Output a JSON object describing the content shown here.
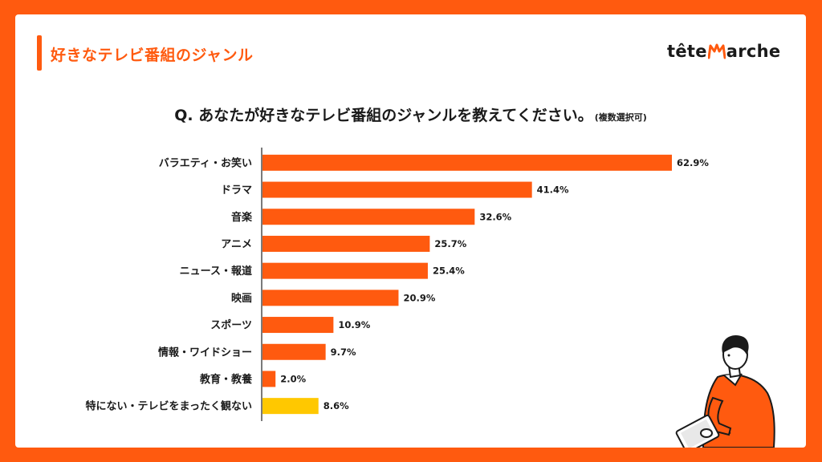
{
  "header": {
    "title": "好きなテレビ番組のジャンル",
    "logo_left": "tête",
    "logo_right": "arche"
  },
  "question": {
    "text": "Q. あなたが好きなテレビ番組のジャンルを教えてください。",
    "note": "(複数選択可)"
  },
  "colors": {
    "brand": "#FF5A0F",
    "highlight": "#FFC800",
    "text": "#1a1a1a"
  },
  "chart_data": {
    "type": "bar",
    "orientation": "horizontal",
    "title": "Q. あなたが好きなテレビ番組のジャンルを教えてください。",
    "xlim": [
      0,
      100
    ],
    "categories": [
      "バラエティ・お笑い",
      "ドラマ",
      "音楽",
      "アニメ",
      "ニュース・報道",
      "映画",
      "スポーツ",
      "情報・ワイドショー",
      "教育・教養",
      "特にない・テレビをまったく観ない"
    ],
    "values": [
      62.9,
      41.4,
      32.6,
      25.7,
      25.4,
      20.9,
      10.9,
      9.7,
      2.0,
      8.6
    ],
    "value_labels": [
      "62.9%",
      "41.4%",
      "32.6%",
      "25.7%",
      "25.4%",
      "20.9%",
      "10.9%",
      "9.7%",
      "2.0%",
      "8.6%"
    ],
    "bar_colors": [
      "#FF5A0F",
      "#FF5A0F",
      "#FF5A0F",
      "#FF5A0F",
      "#FF5A0F",
      "#FF5A0F",
      "#FF5A0F",
      "#FF5A0F",
      "#FF5A0F",
      "#FFC800"
    ],
    "grid": false,
    "legend": "none"
  }
}
